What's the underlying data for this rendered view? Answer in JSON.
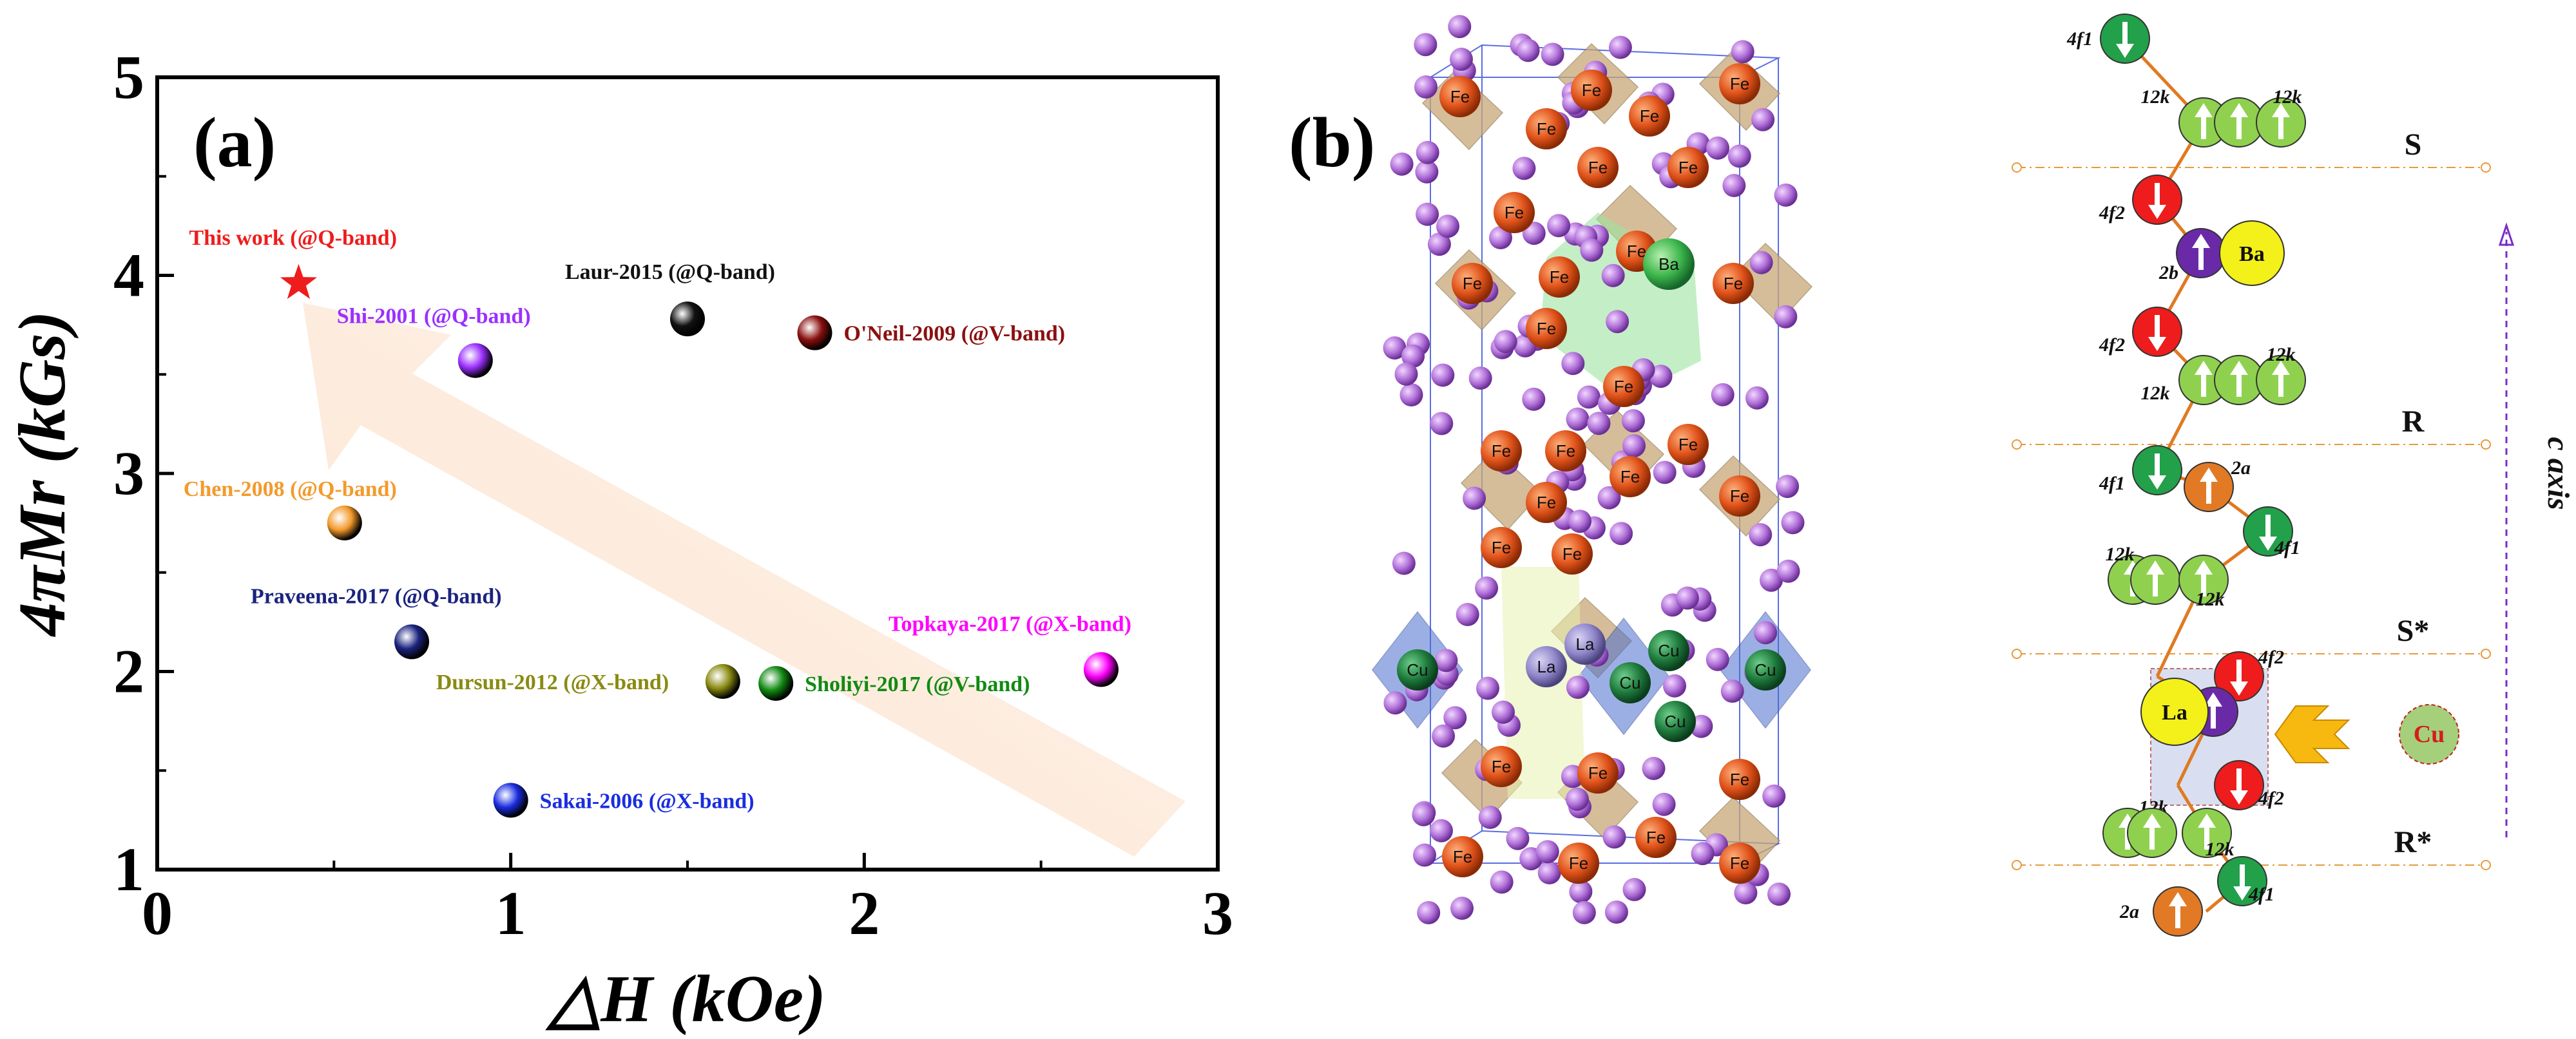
{
  "chart_data": {
    "type": "scatter",
    "panel_label": "(a)",
    "xlabel": "△H (kOe)",
    "ylabel": "4πMr (kGs)",
    "xlim": [
      0,
      3
    ],
    "ylim": [
      1,
      5
    ],
    "xticks": [
      "0",
      "1",
      "2",
      "3"
    ],
    "yticks": [
      "1",
      "2",
      "3",
      "4",
      "5"
    ],
    "points": [
      {
        "label": "This work (@Q-band)",
        "x": 0.4,
        "y": 3.96,
        "color": "#ee1c1c",
        "marker": "star"
      },
      {
        "label": "Laur-2015 (@Q-band)",
        "x": 1.5,
        "y": 3.78,
        "color": "#111111",
        "marker": "sphere"
      },
      {
        "label": "O'Neil-2009 (@V-band)",
        "x": 1.86,
        "y": 3.71,
        "color": "#8b1010",
        "marker": "sphere"
      },
      {
        "label": "Shi-2001 (@Q-band)",
        "x": 0.9,
        "y": 3.57,
        "color": "#9b30ff",
        "marker": "sphere"
      },
      {
        "label": "Chen-2008 (@Q-band)",
        "x": 0.53,
        "y": 2.75,
        "color": "#f39a2c",
        "marker": "sphere"
      },
      {
        "label": "Praveena-2017 (@Q-band)",
        "x": 0.72,
        "y": 2.15,
        "color": "#1a237e",
        "marker": "sphere"
      },
      {
        "label": "Topkaya-2017 (@X-band)",
        "x": 2.67,
        "y": 2.01,
        "color": "#ff00ff",
        "marker": "sphere"
      },
      {
        "label": "Dursun-2012 (@X-band)",
        "x": 1.6,
        "y": 1.95,
        "color": "#8a8a12",
        "marker": "sphere"
      },
      {
        "label": "Sholiyi-2017 (@V-band)",
        "x": 1.75,
        "y": 1.94,
        "color": "#128a12",
        "marker": "sphere"
      },
      {
        "label": "Sakai-2006 (@X-band)",
        "x": 1.0,
        "y": 1.35,
        "color": "#1a2de0",
        "marker": "sphere"
      }
    ]
  },
  "panel_b": {
    "label": "(b)",
    "atoms": {
      "fe": "Fe",
      "cu": "Cu",
      "la": "La",
      "ba": "Ba"
    },
    "sites": {
      "f1": "4f1",
      "f2": "4f2",
      "k": "12k",
      "b": "2b",
      "a": "2a"
    },
    "layers": [
      "S",
      "R",
      "S*",
      "R*"
    ],
    "axis_label": "c axis",
    "substitution": "Cu",
    "colors": {
      "fe": "#e0521a",
      "cu": "#1e7a3c",
      "la": "#8f86c9",
      "ba": "#3bb54a",
      "o": "#b070d8",
      "poly": "#c8a878",
      "cupoly": "#4a6fd0"
    }
  }
}
